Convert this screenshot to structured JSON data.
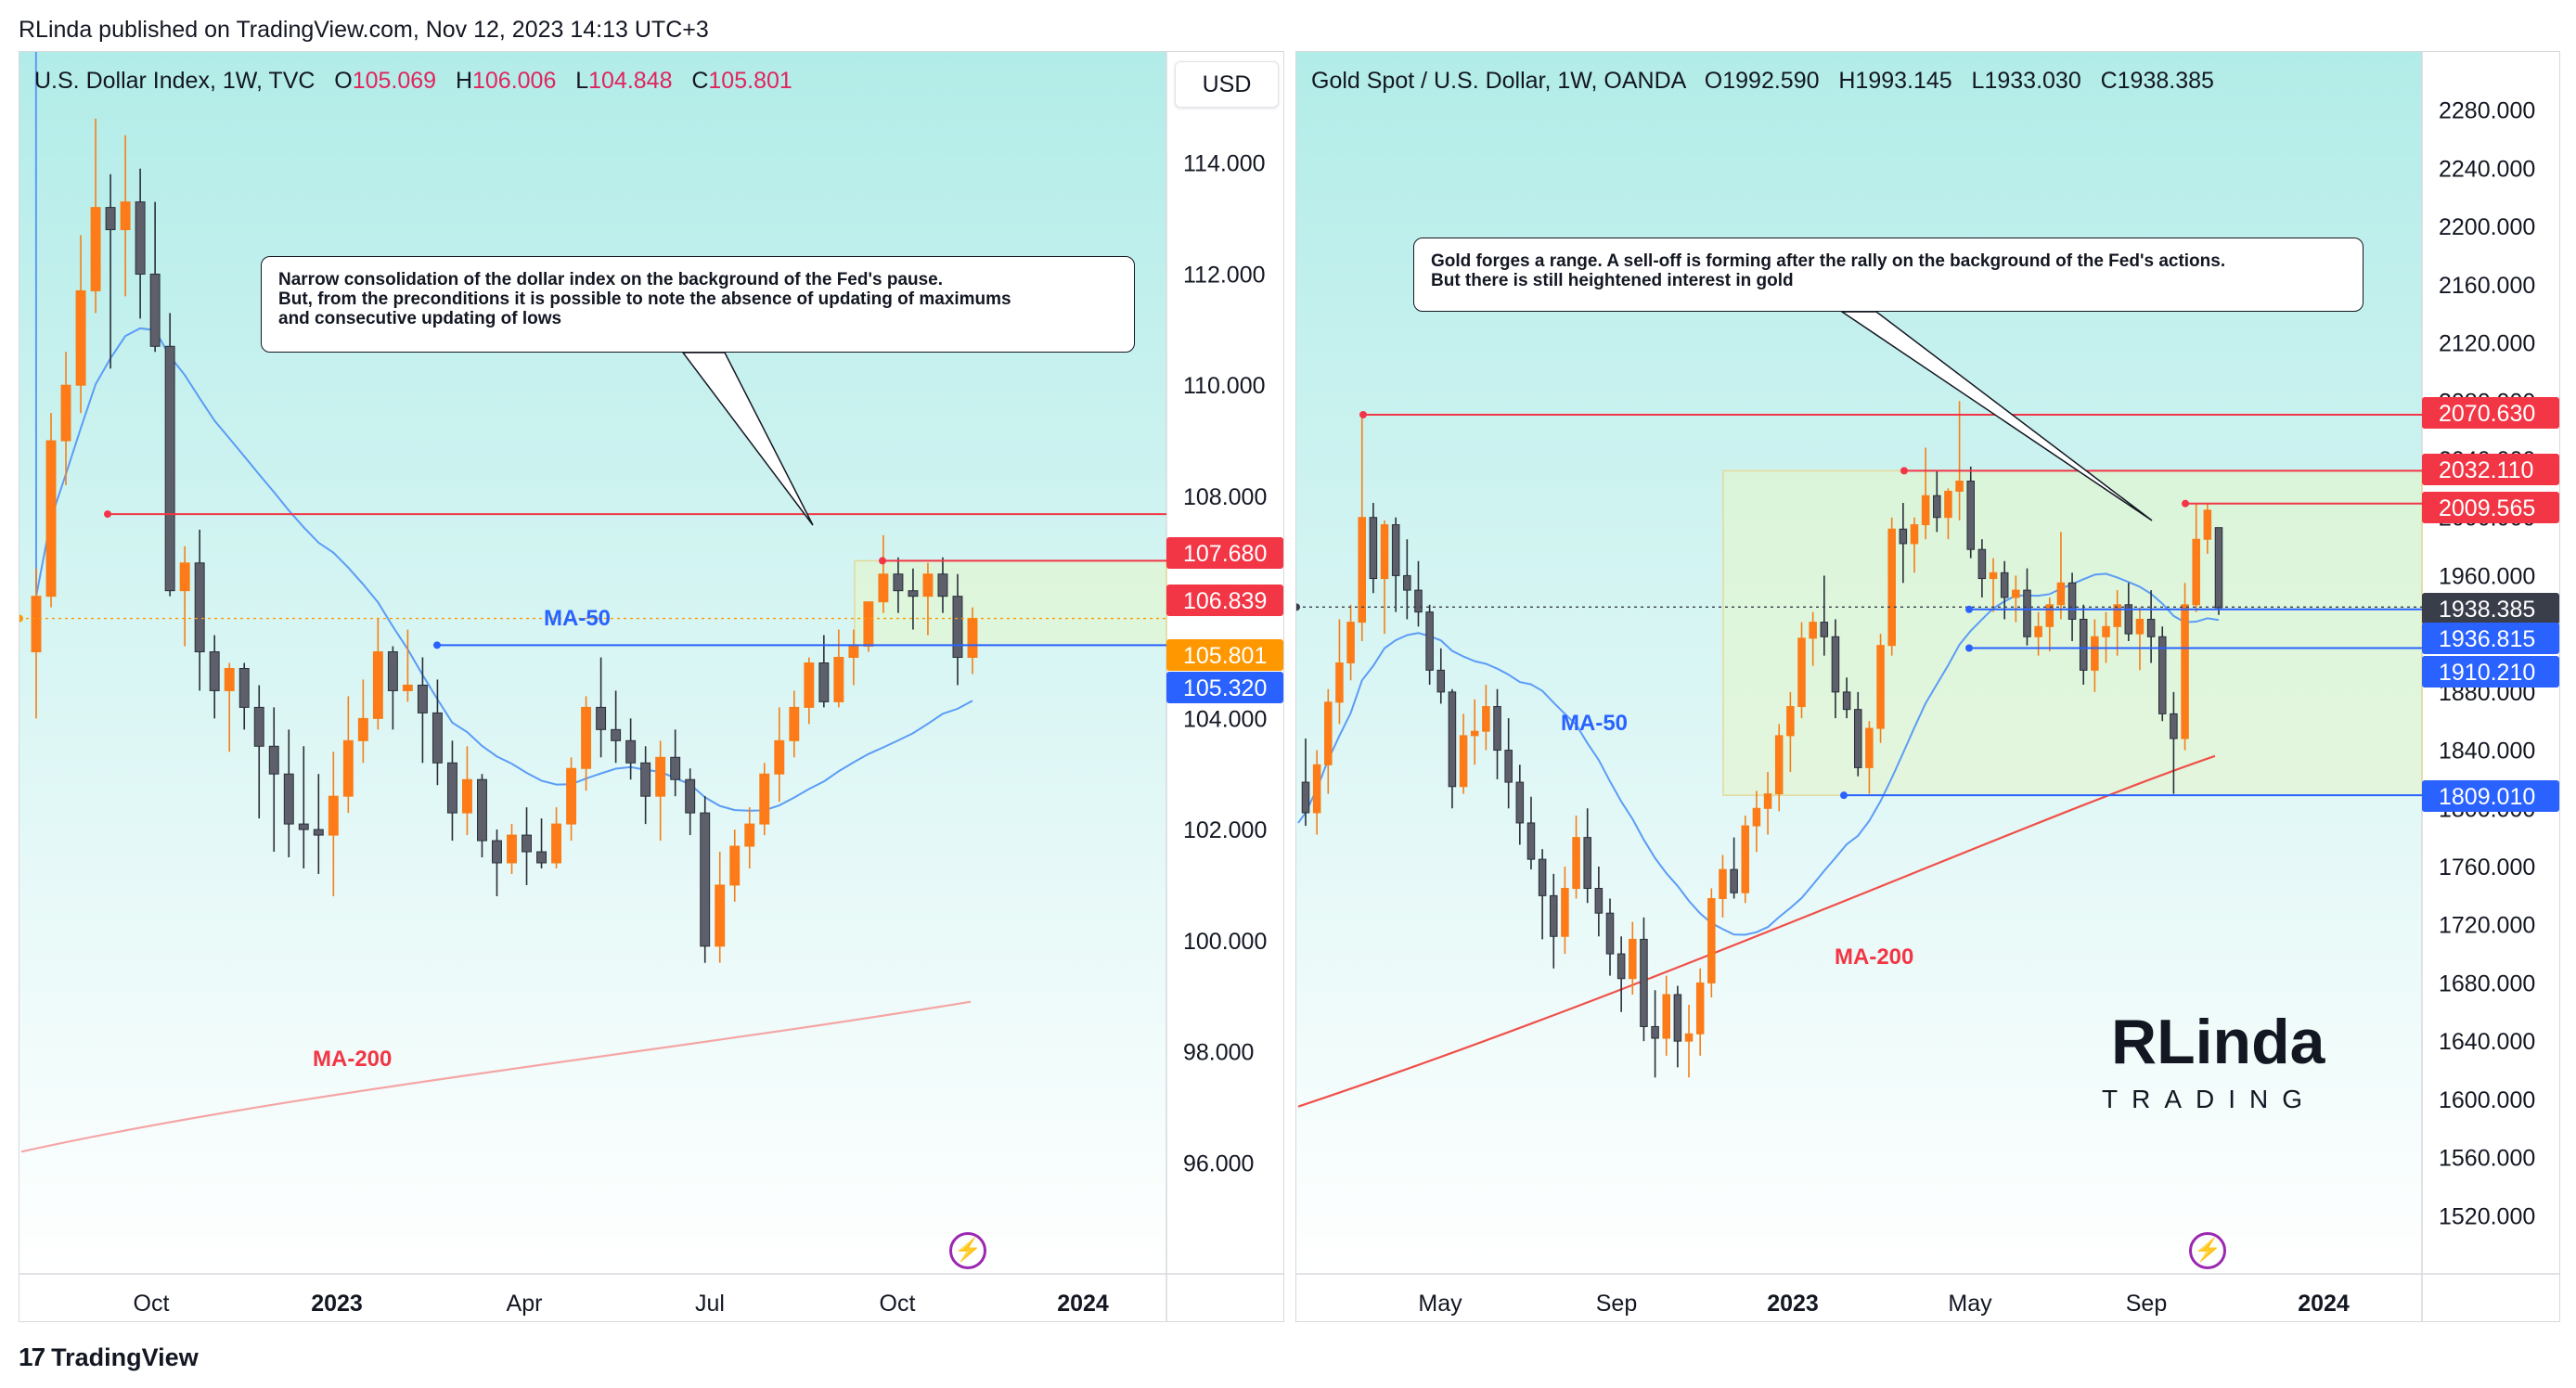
{
  "header": {
    "caption": "RLinda published on TradingView.com, Nov 12, 2023 14:13 UTC+3"
  },
  "footer": {
    "brand": "TradingView"
  },
  "chart_data": [
    {
      "type": "candlestick",
      "title": "U.S. Dollar Index, 1W, TVC",
      "legend": {
        "symbol": "U.S. Dollar Index, 1W, TVC",
        "open": "105.069",
        "high": "106.006",
        "low": "104.848",
        "close": "105.801"
      },
      "currency": "USD",
      "ylim": [
        94.0,
        116.0
      ],
      "y_ticks": [
        "114.000",
        "112.000",
        "110.000",
        "108.000",
        "106.000",
        "104.000",
        "102.000",
        "100.000",
        "98.000",
        "96.000"
      ],
      "x_ticks": [
        "Oct",
        "2023",
        "Apr",
        "Jul",
        "Oct",
        "2024"
      ],
      "callout": "Narrow consolidation of the dollar index on the background of the Fed's pause.\nBut, from the preconditions it is possible to note the absence of updating of maximums\nand consecutive updating of lows",
      "ma_labels": {
        "ma50": "MA-50",
        "ma200": "MA-200"
      },
      "levels": [
        {
          "value": 107.68,
          "label": "107.680",
          "color": "#f23645"
        },
        {
          "value": 106.839,
          "label": "106.839",
          "color": "#f23645"
        },
        {
          "value": 105.801,
          "label": "105.801",
          "color": "#ff9800"
        },
        {
          "value": 105.32,
          "label": "105.320",
          "color": "#2962ff"
        }
      ],
      "candles": [
        [
          105.2,
          106.7,
          104.0,
          106.2
        ],
        [
          106.2,
          109.5,
          106.0,
          109.0
        ],
        [
          109.0,
          110.6,
          108.2,
          110.0
        ],
        [
          110.0,
          112.7,
          109.5,
          111.7
        ],
        [
          111.7,
          114.8,
          111.3,
          113.2
        ],
        [
          113.2,
          113.8,
          110.3,
          112.8
        ],
        [
          112.8,
          114.5,
          111.6,
          113.3
        ],
        [
          113.3,
          113.9,
          111.2,
          112.0
        ],
        [
          112.0,
          113.3,
          110.6,
          110.7
        ],
        [
          110.7,
          111.3,
          106.2,
          106.3
        ],
        [
          106.3,
          107.1,
          105.3,
          106.8
        ],
        [
          106.8,
          107.4,
          104.5,
          105.2
        ],
        [
          105.2,
          105.5,
          104.0,
          104.5
        ],
        [
          104.5,
          105.0,
          103.4,
          104.9
        ],
        [
          104.9,
          105.0,
          103.8,
          104.2
        ],
        [
          104.2,
          104.6,
          102.2,
          103.5
        ],
        [
          103.5,
          104.2,
          101.6,
          103.0
        ],
        [
          103.0,
          103.8,
          101.5,
          102.1
        ],
        [
          102.1,
          103.5,
          101.3,
          102.0
        ],
        [
          102.0,
          103.0,
          101.2,
          101.9
        ],
        [
          101.9,
          103.4,
          100.8,
          102.6
        ],
        [
          102.6,
          104.4,
          102.3,
          103.6
        ],
        [
          103.6,
          104.7,
          103.2,
          104.0
        ],
        [
          104.0,
          105.8,
          103.8,
          105.2
        ],
        [
          105.2,
          105.3,
          103.8,
          104.5
        ],
        [
          104.5,
          105.6,
          104.3,
          104.6
        ],
        [
          104.6,
          105.1,
          103.2,
          104.1
        ],
        [
          104.1,
          104.7,
          102.8,
          103.2
        ],
        [
          103.2,
          103.6,
          101.8,
          102.3
        ],
        [
          102.3,
          103.5,
          101.9,
          102.9
        ],
        [
          102.9,
          103.0,
          101.5,
          101.8
        ],
        [
          101.8,
          102.0,
          100.8,
          101.4
        ],
        [
          101.4,
          102.1,
          101.2,
          101.9
        ],
        [
          101.9,
          102.4,
          101.0,
          101.6
        ],
        [
          101.6,
          102.2,
          101.3,
          101.4
        ],
        [
          101.4,
          102.4,
          101.3,
          102.1
        ],
        [
          102.1,
          103.3,
          101.8,
          103.1
        ],
        [
          103.1,
          104.4,
          102.7,
          104.2
        ],
        [
          104.2,
          105.1,
          103.3,
          103.8
        ],
        [
          103.8,
          104.5,
          103.2,
          103.6
        ],
        [
          103.6,
          104.0,
          102.9,
          103.2
        ],
        [
          103.2,
          103.5,
          102.1,
          102.6
        ],
        [
          102.6,
          103.6,
          101.8,
          103.3
        ],
        [
          103.3,
          103.8,
          102.6,
          102.9
        ],
        [
          102.9,
          103.1,
          101.9,
          102.3
        ],
        [
          102.3,
          102.6,
          99.6,
          99.9
        ],
        [
          99.9,
          101.6,
          99.6,
          101.0
        ],
        [
          101.0,
          102.0,
          100.7,
          101.7
        ],
        [
          101.7,
          102.4,
          101.3,
          102.1
        ],
        [
          102.1,
          103.2,
          101.9,
          103.0
        ],
        [
          103.0,
          104.2,
          102.5,
          103.6
        ],
        [
          103.6,
          104.5,
          103.3,
          104.2
        ],
        [
          104.2,
          105.1,
          103.9,
          105.0
        ],
        [
          105.0,
          105.5,
          104.2,
          104.3
        ],
        [
          104.3,
          105.6,
          104.2,
          105.1
        ],
        [
          105.1,
          105.6,
          104.6,
          105.3
        ],
        [
          105.3,
          106.1,
          105.2,
          106.1
        ],
        [
          106.1,
          107.3,
          105.9,
          106.6
        ],
        [
          106.6,
          106.9,
          105.9,
          106.3
        ],
        [
          106.3,
          106.7,
          105.6,
          106.2
        ],
        [
          106.2,
          106.8,
          105.5,
          106.6
        ],
        [
          106.6,
          106.9,
          105.9,
          106.2
        ],
        [
          106.2,
          106.6,
          104.6,
          105.1
        ],
        [
          105.1,
          106.0,
          104.8,
          105.8
        ]
      ]
    },
    {
      "type": "candlestick",
      "title": "Gold Spot / U.S. Dollar, 1W, OANDA",
      "legend": {
        "symbol": "Gold Spot / U.S. Dollar, 1W, OANDA",
        "open": "1992.590",
        "high": "1993.145",
        "low": "1933.030",
        "close": "1938.385"
      },
      "ylim": [
        1480,
        2320
      ],
      "y_ticks": [
        "2280.000",
        "2240.000",
        "2200.000",
        "2160.000",
        "2120.000",
        "2080.000",
        "2040.000",
        "2000.000",
        "1960.000",
        "1920.000",
        "1880.000",
        "1840.000",
        "1800.000",
        "1760.000",
        "1720.000",
        "1680.000",
        "1640.000",
        "1600.000",
        "1560.000",
        "1520.000"
      ],
      "x_ticks": [
        "May",
        "Sep",
        "2023",
        "May",
        "Sep",
        "2024"
      ],
      "callout": "Gold forges a range. A sell-off is forming after the rally on the background of the Fed's actions.\nBut there is still heightened interest in gold",
      "ma_labels": {
        "ma50": "MA-50",
        "ma200": "MA-200"
      },
      "levels": [
        {
          "value": 2070.63,
          "label": "2070.630",
          "color": "#f23645"
        },
        {
          "value": 2032.11,
          "label": "2032.110",
          "color": "#f23645"
        },
        {
          "value": 2009.565,
          "label": "2009.565",
          "color": "#f23645"
        },
        {
          "value": 1938.385,
          "label": "1938.385",
          "color": "#3a3e4a"
        },
        {
          "value": 1936.815,
          "label": "1936.815",
          "color": "#2962ff"
        },
        {
          "value": 1910.21,
          "label": "1910.210",
          "color": "#2962ff"
        },
        {
          "value": 1809.01,
          "label": "1809.010",
          "color": "#2962ff"
        }
      ],
      "logo_text": {
        "top": "RLinda",
        "bottom": "TRADING"
      },
      "candles": [
        [
          1818,
          1848,
          1788,
          1797
        ],
        [
          1797,
          1840,
          1782,
          1830
        ],
        [
          1830,
          1882,
          1810,
          1873
        ],
        [
          1873,
          1930,
          1858,
          1900
        ],
        [
          1900,
          1940,
          1888,
          1928
        ],
        [
          1928,
          2070,
          1915,
          2000
        ],
        [
          2000,
          2010,
          1948,
          1958
        ],
        [
          1958,
          1998,
          1920,
          1995
        ],
        [
          1995,
          2000,
          1935,
          1960
        ],
        [
          1960,
          1985,
          1930,
          1950
        ],
        [
          1950,
          1970,
          1925,
          1935
        ],
        [
          1935,
          1940,
          1885,
          1895
        ],
        [
          1895,
          1910,
          1872,
          1880
        ],
        [
          1880,
          1882,
          1800,
          1815
        ],
        [
          1815,
          1865,
          1810,
          1850
        ],
        [
          1850,
          1875,
          1830,
          1853
        ],
        [
          1853,
          1885,
          1840,
          1870
        ],
        [
          1870,
          1882,
          1820,
          1840
        ],
        [
          1840,
          1862,
          1800,
          1818
        ],
        [
          1818,
          1830,
          1775,
          1790
        ],
        [
          1790,
          1808,
          1758,
          1765
        ],
        [
          1765,
          1772,
          1710,
          1740
        ],
        [
          1740,
          1755,
          1690,
          1712
        ],
        [
          1712,
          1760,
          1700,
          1745
        ],
        [
          1745,
          1795,
          1738,
          1780
        ],
        [
          1780,
          1800,
          1735,
          1745
        ],
        [
          1745,
          1760,
          1712,
          1728
        ],
        [
          1728,
          1738,
          1685,
          1700
        ],
        [
          1700,
          1712,
          1660,
          1683
        ],
        [
          1683,
          1722,
          1672,
          1710
        ],
        [
          1710,
          1725,
          1640,
          1650
        ],
        [
          1650,
          1675,
          1615,
          1642
        ],
        [
          1642,
          1685,
          1630,
          1672
        ],
        [
          1672,
          1678,
          1622,
          1640
        ],
        [
          1640,
          1665,
          1615,
          1645
        ],
        [
          1645,
          1690,
          1630,
          1680
        ],
        [
          1680,
          1745,
          1670,
          1738
        ],
        [
          1738,
          1768,
          1725,
          1758
        ],
        [
          1758,
          1780,
          1738,
          1742
        ],
        [
          1742,
          1795,
          1735,
          1788
        ],
        [
          1788,
          1812,
          1770,
          1800
        ],
        [
          1800,
          1825,
          1782,
          1810
        ],
        [
          1810,
          1858,
          1798,
          1850
        ],
        [
          1850,
          1880,
          1825,
          1870
        ],
        [
          1870,
          1928,
          1862,
          1917
        ],
        [
          1917,
          1935,
          1898,
          1928
        ],
        [
          1928,
          1960,
          1905,
          1918
        ],
        [
          1918,
          1930,
          1862,
          1880
        ],
        [
          1880,
          1890,
          1862,
          1868
        ],
        [
          1868,
          1880,
          1822,
          1828
        ],
        [
          1828,
          1860,
          1810,
          1855
        ],
        [
          1855,
          1920,
          1845,
          1912
        ],
        [
          1912,
          2000,
          1905,
          1992
        ],
        [
          1992,
          2010,
          1955,
          1982
        ],
        [
          1982,
          2000,
          1962,
          1995
        ],
        [
          1995,
          2048,
          1985,
          2015
        ],
        [
          2015,
          2032,
          1990,
          2000
        ],
        [
          2000,
          2020,
          1985,
          2018
        ],
        [
          2018,
          2080,
          1998,
          2025
        ],
        [
          2025,
          2035,
          1972,
          1978
        ],
        [
          1978,
          1985,
          1945,
          1958
        ],
        [
          1958,
          1972,
          1935,
          1962
        ],
        [
          1962,
          1970,
          1930,
          1945
        ],
        [
          1945,
          1960,
          1928,
          1950
        ],
        [
          1950,
          1965,
          1912,
          1918
        ],
        [
          1918,
          1935,
          1905,
          1925
        ],
        [
          1925,
          1945,
          1908,
          1940
        ],
        [
          1940,
          1990,
          1930,
          1955
        ],
        [
          1955,
          1962,
          1915,
          1930
        ],
        [
          1930,
          1940,
          1885,
          1895
        ],
        [
          1895,
          1930,
          1880,
          1918
        ],
        [
          1918,
          1935,
          1900,
          1925
        ],
        [
          1925,
          1950,
          1905,
          1940
        ],
        [
          1940,
          1955,
          1915,
          1920
        ],
        [
          1920,
          1938,
          1895,
          1930
        ],
        [
          1930,
          1950,
          1900,
          1918
        ],
        [
          1918,
          1925,
          1860,
          1865
        ],
        [
          1865,
          1880,
          1810,
          1848
        ],
        [
          1848,
          1955,
          1840,
          1940
        ],
        [
          1940,
          2009,
          1935,
          1985
        ],
        [
          1985,
          2010,
          1975,
          2005
        ],
        [
          1993,
          1993,
          1933,
          1938
        ]
      ]
    }
  ]
}
